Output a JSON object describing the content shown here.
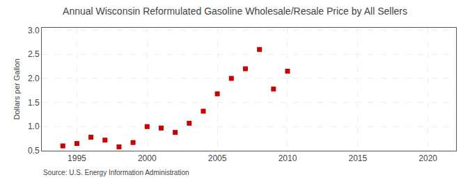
{
  "chart_data": {
    "type": "scatter",
    "title": "Annual Wisconsin Reformulated Gasoline Wholesale/Resale Price by All Sellers",
    "ylabel": "Dollars per Gallon",
    "annotations": [
      "Source: U.S. Energy Information Administration"
    ],
    "x": [
      1994,
      1995,
      1996,
      1997,
      1998,
      1999,
      2000,
      2001,
      2002,
      2003,
      2004,
      2005,
      2006,
      2007,
      2008,
      2009,
      2010
    ],
    "values": [
      0.6,
      0.65,
      0.78,
      0.72,
      0.58,
      0.67,
      1.0,
      0.97,
      0.88,
      1.07,
      1.32,
      1.68,
      2.0,
      2.2,
      2.6,
      1.78,
      2.15
    ],
    "color": "#cc0000",
    "marker": "square",
    "xlim": [
      1992.5,
      2022
    ],
    "ylim": [
      0.5,
      3.05
    ],
    "xticks": [
      1995,
      2000,
      2005,
      2010,
      2015,
      2020
    ],
    "yticks": [
      0.5,
      {
        "value": 1,
        "label": "1.0"
      },
      1.5,
      {
        "value": 2,
        "label": "2.0"
      },
      2.5,
      {
        "value": 3,
        "label": "3.0"
      }
    ],
    "grid": true
  }
}
